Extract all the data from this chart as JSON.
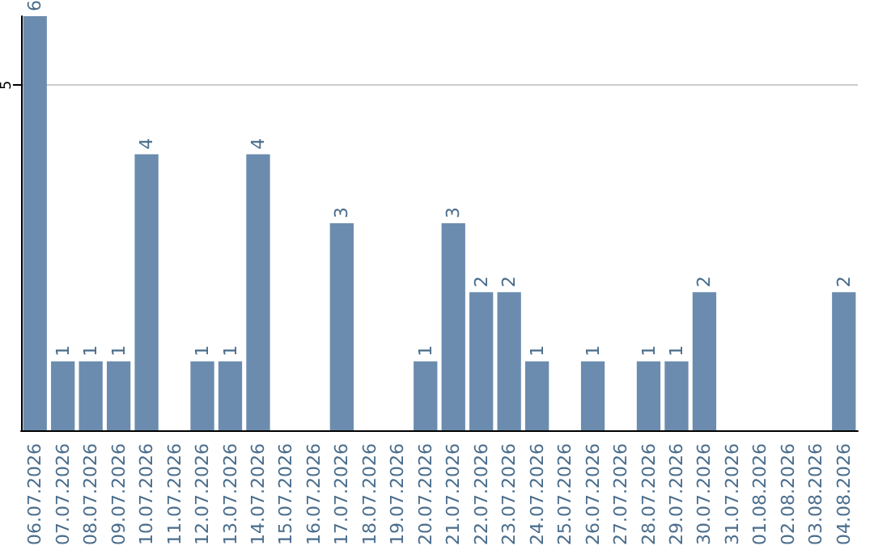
{
  "chart_data": {
    "type": "bar",
    "categories": [
      "06.07.2026",
      "07.07.2026",
      "08.07.2026",
      "09.07.2026",
      "10.07.2026",
      "11.07.2026",
      "12.07.2026",
      "13.07.2026",
      "14.07.2026",
      "15.07.2026",
      "16.07.2026",
      "17.07.2026",
      "18.07.2026",
      "19.07.2026",
      "20.07.2026",
      "21.07.2026",
      "22.07.2026",
      "23.07.2026",
      "24.07.2026",
      "25.07.2026",
      "26.07.2026",
      "27.07.2026",
      "28.07.2026",
      "29.07.2026",
      "30.07.2026",
      "31.07.2026",
      "01.08.2026",
      "02.08.2026",
      "03.08.2026",
      "04.08.2026"
    ],
    "values": [
      6,
      1,
      1,
      1,
      4,
      null,
      1,
      1,
      4,
      null,
      null,
      3,
      null,
      null,
      1,
      3,
      2,
      2,
      1,
      null,
      1,
      null,
      1,
      1,
      2,
      null,
      null,
      null,
      null,
      2
    ],
    "color": "#6b8cae",
    "ylim": [
      0,
      6
    ],
    "yticks": [
      5
    ],
    "grid": "y",
    "data_labels": true
  }
}
